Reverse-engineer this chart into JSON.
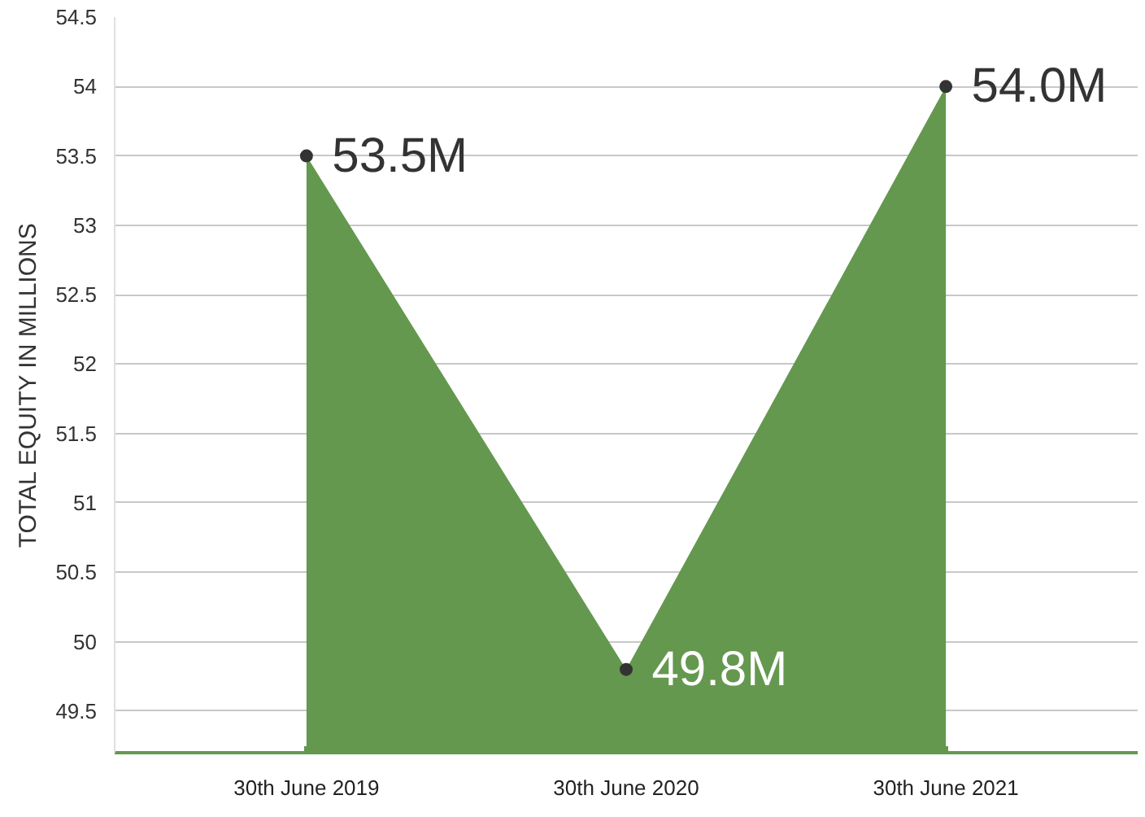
{
  "chart_data": {
    "type": "area",
    "ylabel": "TOTAL EQUITY IN MILLIONS",
    "categories": [
      "30th June 2019",
      "30th June 2020",
      "30th June 2021"
    ],
    "series": [
      {
        "color": "#64984f",
        "values": [
          53.5,
          49.8,
          54.0
        ],
        "value_labels": [
          "53.5M",
          "49.8M",
          "54.0M"
        ]
      }
    ],
    "ylim": [
      49.2,
      54.5
    ],
    "yticks": [
      49.5,
      50,
      50.5,
      51,
      51.5,
      52,
      52.5,
      53,
      53.5,
      54,
      54.5
    ],
    "grid": "y",
    "marker": "circle"
  }
}
